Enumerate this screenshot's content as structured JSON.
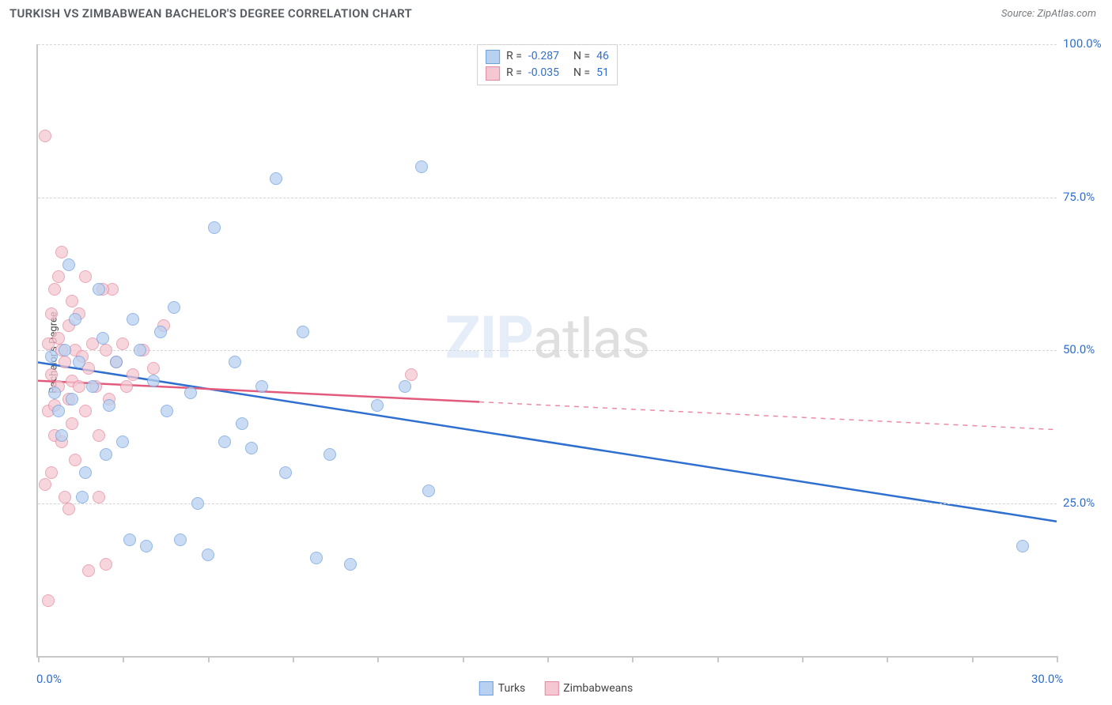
{
  "header": {
    "title": "TURKISH VS ZIMBABWEAN BACHELOR'S DEGREE CORRELATION CHART",
    "source_label": "Source: ",
    "source_value": "ZipAtlas.com"
  },
  "chart": {
    "type": "scatter",
    "y_axis_label": "Bachelor's Degree",
    "xlim": [
      0,
      30
    ],
    "ylim": [
      0,
      100
    ],
    "x_tick_positions": [
      0,
      2.5,
      5,
      7.5,
      10,
      12.5,
      15,
      17.5,
      20,
      22.5,
      25,
      27.5,
      30
    ],
    "x_tick_labels": {
      "0": "0.0%",
      "30": "30.0%"
    },
    "y_tick_positions": [
      25,
      50,
      75,
      100
    ],
    "y_tick_labels": {
      "25": "25.0%",
      "50": "50.0%",
      "75": "75.0%",
      "100": "100.0%"
    },
    "background_color": "#ffffff",
    "grid_color": "#d6d6d6",
    "point_radius": 8,
    "watermark": {
      "zip": "ZIP",
      "atlas": "atlas"
    },
    "series": {
      "turks": {
        "label": "Turks",
        "fill": "#b9d1f0",
        "stroke": "#6f9fdd",
        "line_color": "#2f6fd0",
        "stats": {
          "R_label": "R = ",
          "R_value": "-0.287",
          "N_label": "N = ",
          "N_value": "46"
        },
        "trend": {
          "y_at_xmin": 48,
          "y_at_xmax": 22,
          "solid_until_x": 30
        },
        "points": [
          [
            0.4,
            49
          ],
          [
            0.5,
            43
          ],
          [
            0.6,
            40
          ],
          [
            0.7,
            36
          ],
          [
            0.8,
            50
          ],
          [
            0.9,
            64
          ],
          [
            1.0,
            42
          ],
          [
            1.1,
            55
          ],
          [
            1.2,
            48
          ],
          [
            1.3,
            26
          ],
          [
            1.4,
            30
          ],
          [
            1.6,
            44
          ],
          [
            1.8,
            60
          ],
          [
            1.9,
            52
          ],
          [
            2.0,
            33
          ],
          [
            2.1,
            41
          ],
          [
            2.3,
            48
          ],
          [
            2.5,
            35
          ],
          [
            2.7,
            19
          ],
          [
            2.8,
            55
          ],
          [
            3.0,
            50
          ],
          [
            3.2,
            18
          ],
          [
            3.4,
            45
          ],
          [
            3.6,
            53
          ],
          [
            3.8,
            40
          ],
          [
            4.0,
            57
          ],
          [
            4.2,
            19
          ],
          [
            4.5,
            43
          ],
          [
            4.7,
            25
          ],
          [
            5.0,
            16.5
          ],
          [
            5.2,
            70
          ],
          [
            5.5,
            35
          ],
          [
            5.8,
            48
          ],
          [
            6.0,
            38
          ],
          [
            6.3,
            34
          ],
          [
            6.6,
            44
          ],
          [
            7.0,
            78
          ],
          [
            7.3,
            30
          ],
          [
            7.8,
            53
          ],
          [
            8.2,
            16
          ],
          [
            8.6,
            33
          ],
          [
            9.2,
            15
          ],
          [
            10.0,
            41
          ],
          [
            10.8,
            44
          ],
          [
            11.3,
            80
          ],
          [
            11.5,
            27
          ],
          [
            29.0,
            18
          ]
        ]
      },
      "zimbabweans": {
        "label": "Zimbabweans",
        "fill": "#f5c7d2",
        "stroke": "#e38aa0",
        "line_color": "#e35b7c",
        "stats": {
          "R_label": "R = ",
          "R_value": "-0.035",
          "N_label": "N = ",
          "N_value": "51"
        },
        "trend": {
          "y_at_xmin": 45,
          "y_at_xmax": 37,
          "solid_until_x": 13
        },
        "points": [
          [
            0.2,
            85
          ],
          [
            0.2,
            28
          ],
          [
            0.3,
            51
          ],
          [
            0.3,
            40
          ],
          [
            0.3,
            9
          ],
          [
            0.4,
            46
          ],
          [
            0.4,
            30
          ],
          [
            0.5,
            60
          ],
          [
            0.5,
            41
          ],
          [
            0.5,
            36
          ],
          [
            0.6,
            52
          ],
          [
            0.6,
            44
          ],
          [
            0.7,
            66
          ],
          [
            0.7,
            50
          ],
          [
            0.7,
            35
          ],
          [
            0.8,
            48
          ],
          [
            0.8,
            26
          ],
          [
            0.9,
            54
          ],
          [
            0.9,
            42
          ],
          [
            1.0,
            58
          ],
          [
            1.0,
            45
          ],
          [
            1.0,
            38
          ],
          [
            1.1,
            50
          ],
          [
            1.1,
            32
          ],
          [
            1.2,
            56
          ],
          [
            1.2,
            44
          ],
          [
            1.3,
            49
          ],
          [
            1.4,
            62
          ],
          [
            1.4,
            40
          ],
          [
            1.5,
            47
          ],
          [
            1.5,
            14
          ],
          [
            1.6,
            51
          ],
          [
            1.7,
            44
          ],
          [
            1.8,
            36
          ],
          [
            1.8,
            26
          ],
          [
            2.0,
            50
          ],
          [
            2.1,
            42
          ],
          [
            2.2,
            60
          ],
          [
            2.3,
            48
          ],
          [
            2.5,
            51
          ],
          [
            2.6,
            44
          ],
          [
            2.8,
            46
          ],
          [
            3.1,
            50
          ],
          [
            3.4,
            47
          ],
          [
            3.7,
            54
          ],
          [
            2.0,
            15
          ],
          [
            1.9,
            60
          ],
          [
            0.4,
            56
          ],
          [
            0.6,
            62
          ],
          [
            0.9,
            24
          ],
          [
            11.0,
            46
          ]
        ]
      }
    }
  },
  "legend_bottom": {
    "items": [
      "turks",
      "zimbabweans"
    ]
  }
}
